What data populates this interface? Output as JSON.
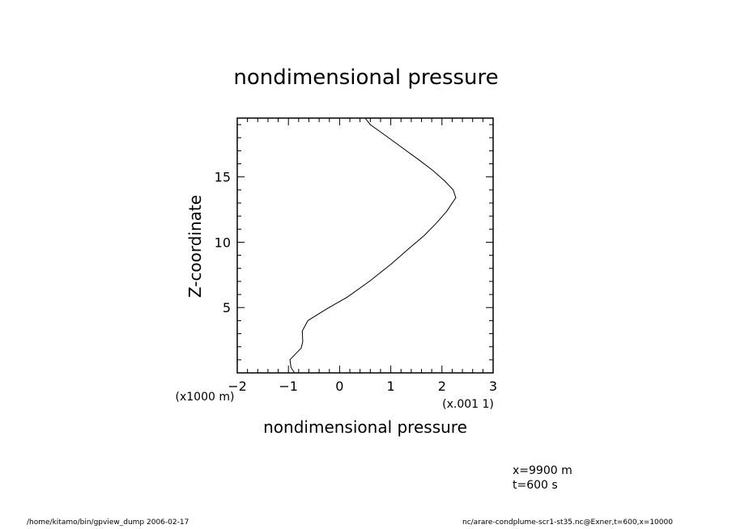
{
  "chart_data": {
    "type": "line",
    "title": "nondimensional pressure",
    "xlabel": "nondimensional pressure",
    "ylabel": "Z-coordinate",
    "x_scale_note": "(x.001 1)",
    "y_scale_note": "(x1000 m)",
    "xlim": [
      -2,
      3
    ],
    "ylim": [
      0,
      19.5
    ],
    "x_ticks": [
      -2,
      -1,
      0,
      1,
      2,
      3
    ],
    "x_tick_labels": [
      "−2",
      "−1",
      "0",
      "1",
      "2",
      "3"
    ],
    "y_ticks": [
      5,
      10,
      15
    ],
    "y_tick_labels": [
      "5",
      "10",
      "15"
    ],
    "grid": false,
    "series": [
      {
        "x": [
          -0.88,
          -0.95,
          -0.97,
          -0.85,
          -0.75,
          -0.72,
          -0.73,
          -0.62,
          -0.25,
          0.15,
          0.58,
          1.0,
          1.35,
          1.65,
          1.9,
          2.1,
          2.2,
          2.27,
          2.22,
          2.05,
          1.82,
          1.55,
          1.2,
          0.85,
          0.6,
          0.5
        ],
        "y": [
          0.0,
          0.4,
          1.0,
          1.5,
          1.9,
          2.4,
          3.2,
          4.0,
          4.9,
          5.8,
          7.0,
          8.3,
          9.5,
          10.5,
          11.5,
          12.4,
          13.0,
          13.4,
          14.0,
          14.7,
          15.5,
          16.3,
          17.3,
          18.3,
          19.0,
          19.5
        ]
      }
    ]
  },
  "annotations": {
    "x_position": "x=9900  m",
    "time": "t=600  s"
  },
  "footer": {
    "left": "/home/kitamo/bin/gpview_dump  2006-02-17",
    "right": "nc/arare-condplume-scr1-st35.nc@Exner,t=600,x=10000"
  }
}
